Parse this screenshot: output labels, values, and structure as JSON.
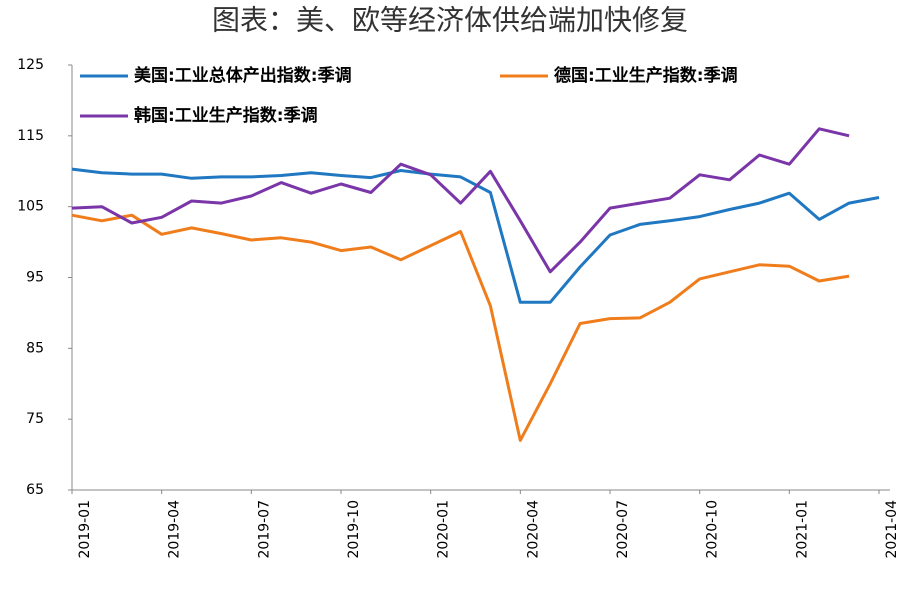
{
  "chart_data": {
    "type": "line",
    "title": "图表：美、欧等经济体供给端加快修复",
    "categories": [
      "2019-01",
      null,
      null,
      "2019-04",
      null,
      null,
      "2019-07",
      null,
      null,
      "2019-10",
      null,
      null,
      "2020-01",
      null,
      null,
      "2020-04",
      null,
      null,
      "2020-07",
      null,
      null,
      "2020-10",
      null,
      null,
      "2021-01",
      null,
      null,
      "2021-04"
    ],
    "series": [
      {
        "name": "美国:工业总体产出指数:季调",
        "color": "#1f78c1",
        "values": [
          110.3,
          109.8,
          109.6,
          109.6,
          109.0,
          109.2,
          109.2,
          109.4,
          109.8,
          109.4,
          109.1,
          110.1,
          109.6,
          109.2,
          107.0,
          91.5,
          91.5,
          96.5,
          101.0,
          102.5,
          103.0,
          103.6,
          104.6,
          105.5,
          106.9,
          103.2,
          105.5,
          106.3
        ]
      },
      {
        "name": "德国:工业生产指数:季调",
        "color": "#f07d1c",
        "values": [
          103.8,
          103.0,
          103.8,
          101.1,
          102.0,
          101.2,
          100.3,
          100.6,
          100.0,
          98.8,
          99.3,
          97.5,
          99.5,
          101.5,
          91.0,
          72.0,
          80.0,
          88.5,
          89.2,
          89.3,
          91.5,
          94.8,
          95.8,
          96.8,
          96.6,
          94.5,
          95.2,
          null
        ]
      },
      {
        "name": "韩国:工业生产指数:季调",
        "color": "#7a35a8",
        "values": [
          104.8,
          105.0,
          102.7,
          103.5,
          105.8,
          105.5,
          106.5,
          108.4,
          106.9,
          108.2,
          107.0,
          111.0,
          109.5,
          105.5,
          110.0,
          103.0,
          95.8,
          100.0,
          104.8,
          105.5,
          106.2,
          109.5,
          108.8,
          112.3,
          111.0,
          116.0,
          115.0,
          null
        ]
      }
    ],
    "ylim": [
      65,
      125
    ],
    "yticks": [
      65,
      75,
      85,
      95,
      105,
      115,
      125
    ],
    "grid": false
  }
}
